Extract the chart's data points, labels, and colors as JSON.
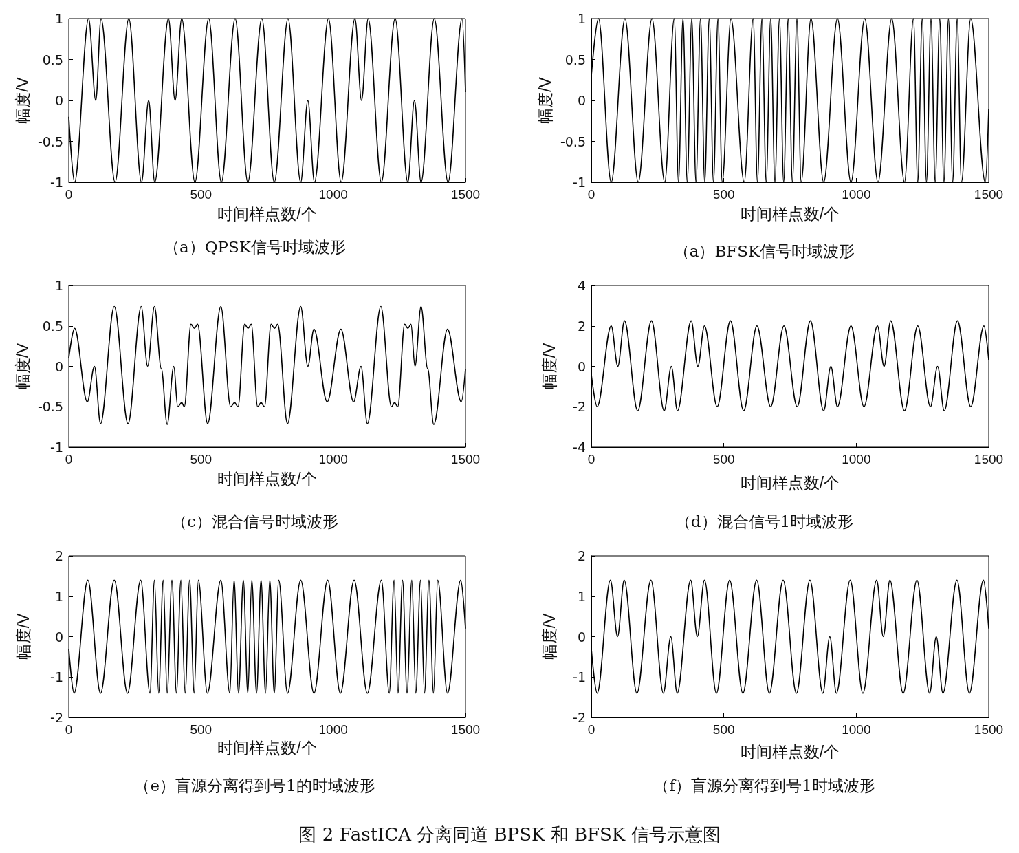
{
  "chart_data": [
    {
      "type": "line",
      "title": "（a）QPSK信号时域波形",
      "xlabel": "时间样点数/个",
      "ylabel": "幅度/V",
      "color": "#000000",
      "xlim": [
        0,
        1500
      ],
      "xticks": [
        0,
        500,
        1000,
        1500
      ],
      "ylim": [
        -1,
        1
      ],
      "yticks": [
        -1,
        -0.5,
        0,
        0.5,
        1
      ],
      "x": [
        0,
        22,
        75,
        102,
        122,
        175,
        227,
        275,
        302,
        325,
        377,
        402,
        427,
        477,
        529,
        577,
        629,
        677,
        730,
        777,
        829,
        877,
        904,
        929,
        982,
        1030,
        1082,
        1107,
        1132,
        1182,
        1234,
        1282,
        1307,
        1332,
        1382,
        1434,
        1487,
        1500
      ],
      "values": [
        -0.2,
        -1,
        1,
        0,
        1,
        -1,
        1,
        -1,
        0,
        -1,
        1,
        0,
        1,
        -1,
        1,
        -1,
        1,
        -1,
        1,
        -1,
        1,
        -1,
        0,
        -1,
        1,
        -1,
        1,
        0,
        1,
        -1,
        1,
        -1,
        0,
        -1,
        1,
        -1,
        1,
        0.1
      ]
    },
    {
      "type": "line",
      "title": "（a）BFSK信号时域波形",
      "xlabel": "时间样点数/个",
      "ylabel": "幅度/V",
      "color": "#000000",
      "xlim": [
        0,
        1500
      ],
      "xticks": [
        0,
        500,
        1000,
        1500
      ],
      "ylim": [
        -1,
        1
      ],
      "yticks": [
        -1,
        -0.5,
        0,
        0.5,
        1
      ],
      "x": [
        0,
        27,
        75,
        127,
        177,
        229,
        277,
        313,
        329,
        346,
        362,
        379,
        395,
        412,
        428,
        445,
        461,
        478,
        494,
        527,
        577,
        611,
        627,
        644,
        660,
        677,
        693,
        710,
        726,
        743,
        759,
        776,
        792,
        829,
        877,
        929,
        980,
        1032,
        1082,
        1134,
        1182,
        1216,
        1232,
        1249,
        1265,
        1282,
        1298,
        1315,
        1331,
        1348,
        1364,
        1381,
        1397,
        1432,
        1487,
        1500
      ],
      "values": [
        0.3,
        1,
        -1,
        1,
        -1,
        1,
        -1,
        1,
        -1,
        1,
        -1,
        1,
        -1,
        1,
        -1,
        1,
        -1,
        1,
        -1,
        1,
        -1,
        1,
        -1,
        1,
        -1,
        1,
        -1,
        1,
        -1,
        1,
        -1,
        1,
        -1,
        1,
        -1,
        1,
        -1,
        1,
        -1,
        1,
        -1,
        1,
        -1,
        1,
        -1,
        1,
        -1,
        1,
        -1,
        1,
        -1,
        1,
        -1,
        1,
        -1,
        -0.1
      ]
    },
    {
      "type": "line",
      "title": "（c）混合信号时域波形",
      "xlabel": "时间样点数/个",
      "ylabel": "幅度/V",
      "color": "#000000",
      "xlim": [
        0,
        1500
      ],
      "xticks": [
        0,
        500,
        1000,
        1500
      ],
      "ylim": [
        -1,
        1
      ],
      "yticks": [
        -1,
        -0.5,
        0,
        0.5,
        1
      ],
      "x": [
        0,
        22,
        70,
        97,
        120,
        172,
        224,
        274,
        298,
        324,
        350,
        372,
        397,
        412,
        427,
        437,
        462,
        475,
        487,
        525,
        575,
        612,
        627,
        640,
        665,
        678,
        690,
        714,
        727,
        740,
        765,
        778,
        790,
        827,
        877,
        904,
        927,
        977,
        1029,
        1077,
        1105,
        1129,
        1180,
        1220,
        1232,
        1244,
        1270,
        1282,
        1294,
        1309,
        1332,
        1357,
        1380,
        1432,
        1484,
        1500
      ],
      "values": [
        0.1,
        0.47,
        -0.44,
        0,
        -0.71,
        0.74,
        -0.71,
        0.74,
        0,
        0.74,
        -0.03,
        -0.72,
        0,
        -0.5,
        -0.45,
        -0.5,
        0.52,
        0.47,
        0.52,
        -0.71,
        0.74,
        -0.5,
        -0.45,
        -0.5,
        0.52,
        0.47,
        0.52,
        -0.5,
        -0.45,
        -0.5,
        0.52,
        0.47,
        0.52,
        -0.71,
        0.74,
        0,
        0.46,
        -0.44,
        0.46,
        -0.44,
        0,
        -0.71,
        0.74,
        -0.5,
        -0.45,
        -0.5,
        0.52,
        0.47,
        0.52,
        0,
        0.74,
        -0.03,
        -0.72,
        0.46,
        -0.44,
        -0.03
      ]
    },
    {
      "type": "line",
      "title": "（d）混合信号1时域波形",
      "xlabel": "时间样点数/个",
      "ylabel": "幅度/V",
      "color": "#000000",
      "xlim": [
        0,
        1500
      ],
      "xticks": [
        0,
        500,
        1000,
        1500
      ],
      "ylim": [
        -4,
        4
      ],
      "yticks": [
        -4,
        -2,
        0,
        2,
        4
      ],
      "x": [
        0,
        22,
        75,
        100,
        125,
        175,
        227,
        275,
        302,
        325,
        377,
        402,
        427,
        475,
        525,
        575,
        625,
        677,
        727,
        777,
        827,
        877,
        904,
        929,
        980,
        1029,
        1080,
        1105,
        1130,
        1182,
        1232,
        1280,
        1307,
        1332,
        1382,
        1432,
        1482,
        1500
      ],
      "values": [
        -0.4,
        -2,
        2,
        0,
        2.25,
        -2.2,
        2.25,
        -2.2,
        0,
        -2.2,
        2.25,
        0,
        2,
        -2,
        2.25,
        -2.2,
        2,
        -2,
        2,
        -2,
        2.25,
        -2.2,
        0,
        -2,
        2,
        -2,
        2,
        0,
        2.25,
        -2.2,
        2,
        -2,
        0,
        -2.2,
        2.25,
        -2,
        2,
        0.3
      ]
    },
    {
      "type": "line",
      "title": "（e）盲源分离得到号1的时域波形",
      "xlabel": "时间样点数/个",
      "ylabel": "幅度/V",
      "color": "#000000",
      "xlim": [
        0,
        1500
      ],
      "xticks": [
        0,
        500,
        1000,
        1500
      ],
      "ylim": [
        -2,
        2
      ],
      "yticks": [
        -2,
        -1,
        0,
        1,
        2
      ],
      "x": [
        0,
        20,
        72,
        120,
        172,
        222,
        272,
        307,
        324,
        340,
        357,
        372,
        390,
        407,
        424,
        440,
        457,
        474,
        490,
        524,
        575,
        609,
        625,
        642,
        660,
        677,
        692,
        710,
        727,
        744,
        760,
        777,
        794,
        827,
        877,
        927,
        979,
        1027,
        1079,
        1129,
        1182,
        1212,
        1230,
        1245,
        1262,
        1279,
        1297,
        1312,
        1330,
        1345,
        1362,
        1379,
        1395,
        1432,
        1482,
        1500
      ],
      "values": [
        -0.3,
        -1.4,
        1.4,
        -1.4,
        1.4,
        -1.4,
        1.4,
        -1.4,
        1.4,
        -1.4,
        1.4,
        -1.4,
        1.4,
        -1.4,
        1.4,
        -1.4,
        1.4,
        -1.4,
        1.4,
        -1.4,
        1.4,
        -1.4,
        1.4,
        -1.4,
        1.4,
        -1.4,
        1.4,
        -1.4,
        1.4,
        -1.4,
        1.4,
        -1.4,
        1.4,
        -1.4,
        1.4,
        -1.4,
        1.4,
        -1.4,
        1.4,
        -1.4,
        1.4,
        -1.4,
        1.4,
        -1.4,
        1.4,
        -1.4,
        1.4,
        -1.4,
        1.4,
        -1.4,
        1.4,
        -1.4,
        1.4,
        -1.4,
        1.4,
        0.2
      ]
    },
    {
      "type": "line",
      "title": "（f）盲源分离得到号1时域波形",
      "xlabel": "时间样点数/个",
      "ylabel": "幅度/V",
      "color": "#000000",
      "xlim": [
        0,
        1500
      ],
      "xticks": [
        0,
        500,
        1000,
        1500
      ],
      "ylim": [
        -2,
        2
      ],
      "yticks": [
        -2,
        -1,
        0,
        1,
        2
      ],
      "annotations": [
        "图 2  FastICA 分离同道 BPSK 和 BFSK 信号示意图"
      ],
      "x": [
        0,
        22,
        72,
        99,
        124,
        172,
        225,
        272,
        300,
        324,
        375,
        400,
        427,
        472,
        522,
        572,
        624,
        672,
        724,
        774,
        825,
        874,
        900,
        925,
        977,
        1025,
        1077,
        1102,
        1127,
        1177,
        1229,
        1277,
        1302,
        1327,
        1380,
        1427,
        1480,
        1500
      ],
      "values": [
        -0.3,
        -1.4,
        1.4,
        0,
        1.4,
        -1.4,
        1.4,
        -1.4,
        0,
        -1.4,
        1.4,
        0,
        1.4,
        -1.4,
        1.4,
        -1.4,
        1.4,
        -1.4,
        1.4,
        -1.4,
        1.4,
        -1.4,
        0,
        -1.4,
        1.4,
        -1.4,
        1.4,
        0,
        1.4,
        -1.4,
        1.4,
        -1.4,
        0,
        -1.4,
        1.4,
        -1.4,
        1.4,
        0.2
      ]
    }
  ]
}
